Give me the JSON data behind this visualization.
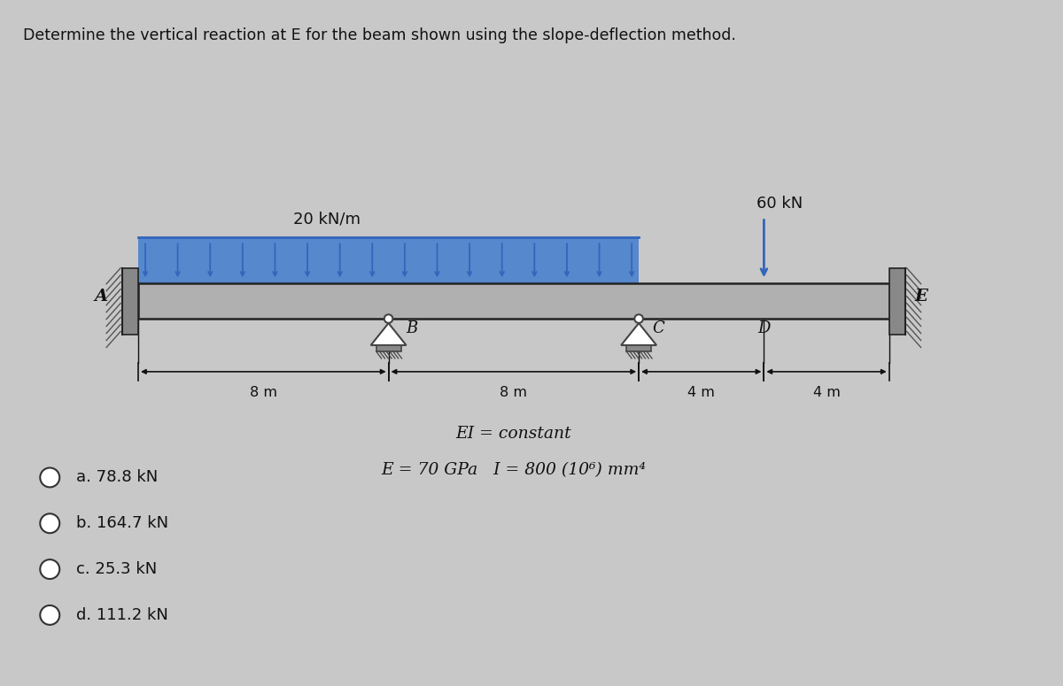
{
  "title": "Determine the vertical reaction at E for the beam shown using the slope-deflection method.",
  "distributed_load_label": "20 kN/m",
  "point_load_label": "60 kN",
  "ei_label": "EI = constant",
  "e_label": "E = 70 GPa   I = 800 (10⁶) mm⁴",
  "choices": [
    "a. 78.8 kN",
    "b. 164.7 kN",
    "c. 25.3 kN",
    "d. 111.2 kN"
  ],
  "bg_color": "#c8c8c8",
  "beam_fill_color": "#b0b0b0",
  "beam_edge_color": "#222222",
  "load_fill_color": "#5588cc",
  "load_arrow_color": "#3366bb",
  "wall_fill_color": "#888888",
  "wall_hatch_color": "#555555",
  "support_color": "#444444",
  "dim_color": "#111111",
  "text_color": "#111111",
  "point_load_color": "#3366bb",
  "segment_labels": [
    "8 m",
    "8 m",
    "4 m",
    "4 m"
  ]
}
